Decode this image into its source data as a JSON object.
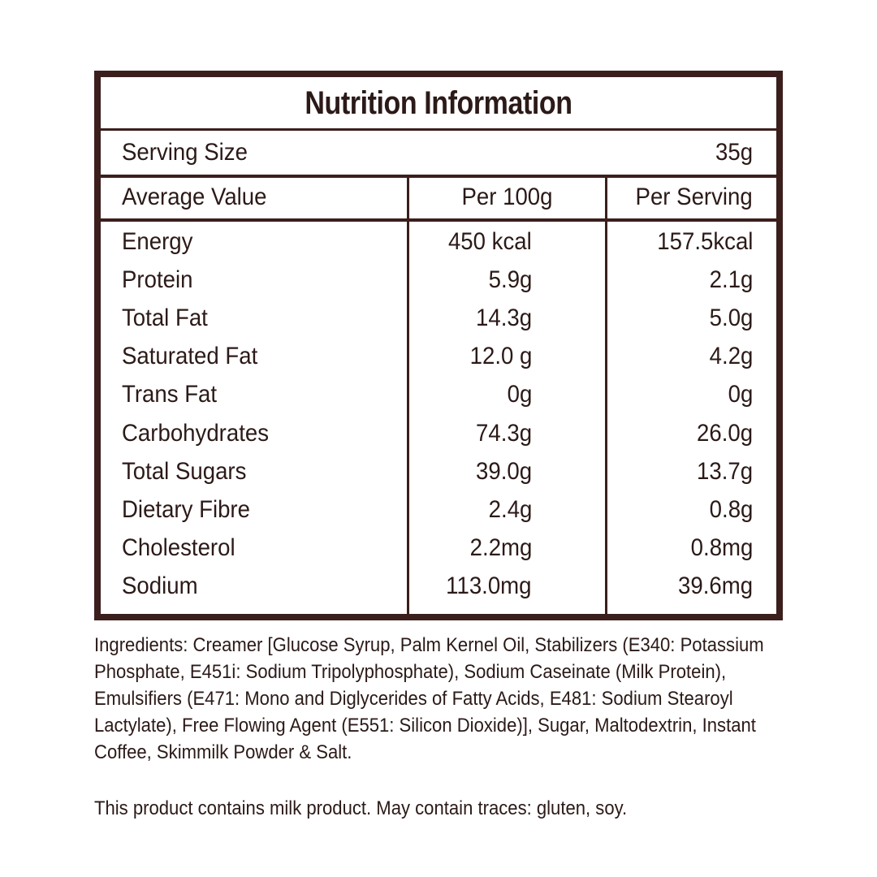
{
  "title": "Nutrition Information",
  "serving": {
    "label": "Serving Size",
    "value": "35g"
  },
  "header": [
    "Average Value",
    "Per 100g",
    "Per Serving"
  ],
  "rows": [
    [
      "Energy",
      "450 kcal",
      "157.5kcal"
    ],
    [
      "Protein",
      "5.9g",
      "2.1g"
    ],
    [
      "Total Fat",
      "14.3g",
      "5.0g"
    ],
    [
      "Saturated Fat",
      "12.0 g",
      "4.2g"
    ],
    [
      "Trans Fat",
      "0g",
      "0g"
    ],
    [
      "Carbohydrates",
      "74.3g",
      "26.0g"
    ],
    [
      "Total Sugars",
      "39.0g",
      "13.7g"
    ],
    [
      "Dietary Fibre",
      "2.4g",
      "0.8g"
    ],
    [
      "Cholesterol",
      "2.2mg",
      "0.8mg"
    ],
    [
      "Sodium",
      "113.0mg",
      "39.6mg"
    ]
  ],
  "ingredients": [
    "Ingredients: Creamer [Glucose Syrup, Palm Kernel Oil, Stabilizers (E340: Potassium",
    "Phosphate, E451i: Sodium Tripolyphosphate), Sodium Caseinate (Milk Protein),",
    "Emulsifiers (E471: Mono and Diglycerides of Fatty Acids, E481: Sodium Stearoyl",
    "Lactylate), Free Flowing Agent (E551: Silicon Dioxide)], Sugar, Maltodextrin, Instant",
    "Coffee, Skimmilk Powder & Salt."
  ],
  "note": "This product contains milk product. May contain traces: gluten, soy."
}
